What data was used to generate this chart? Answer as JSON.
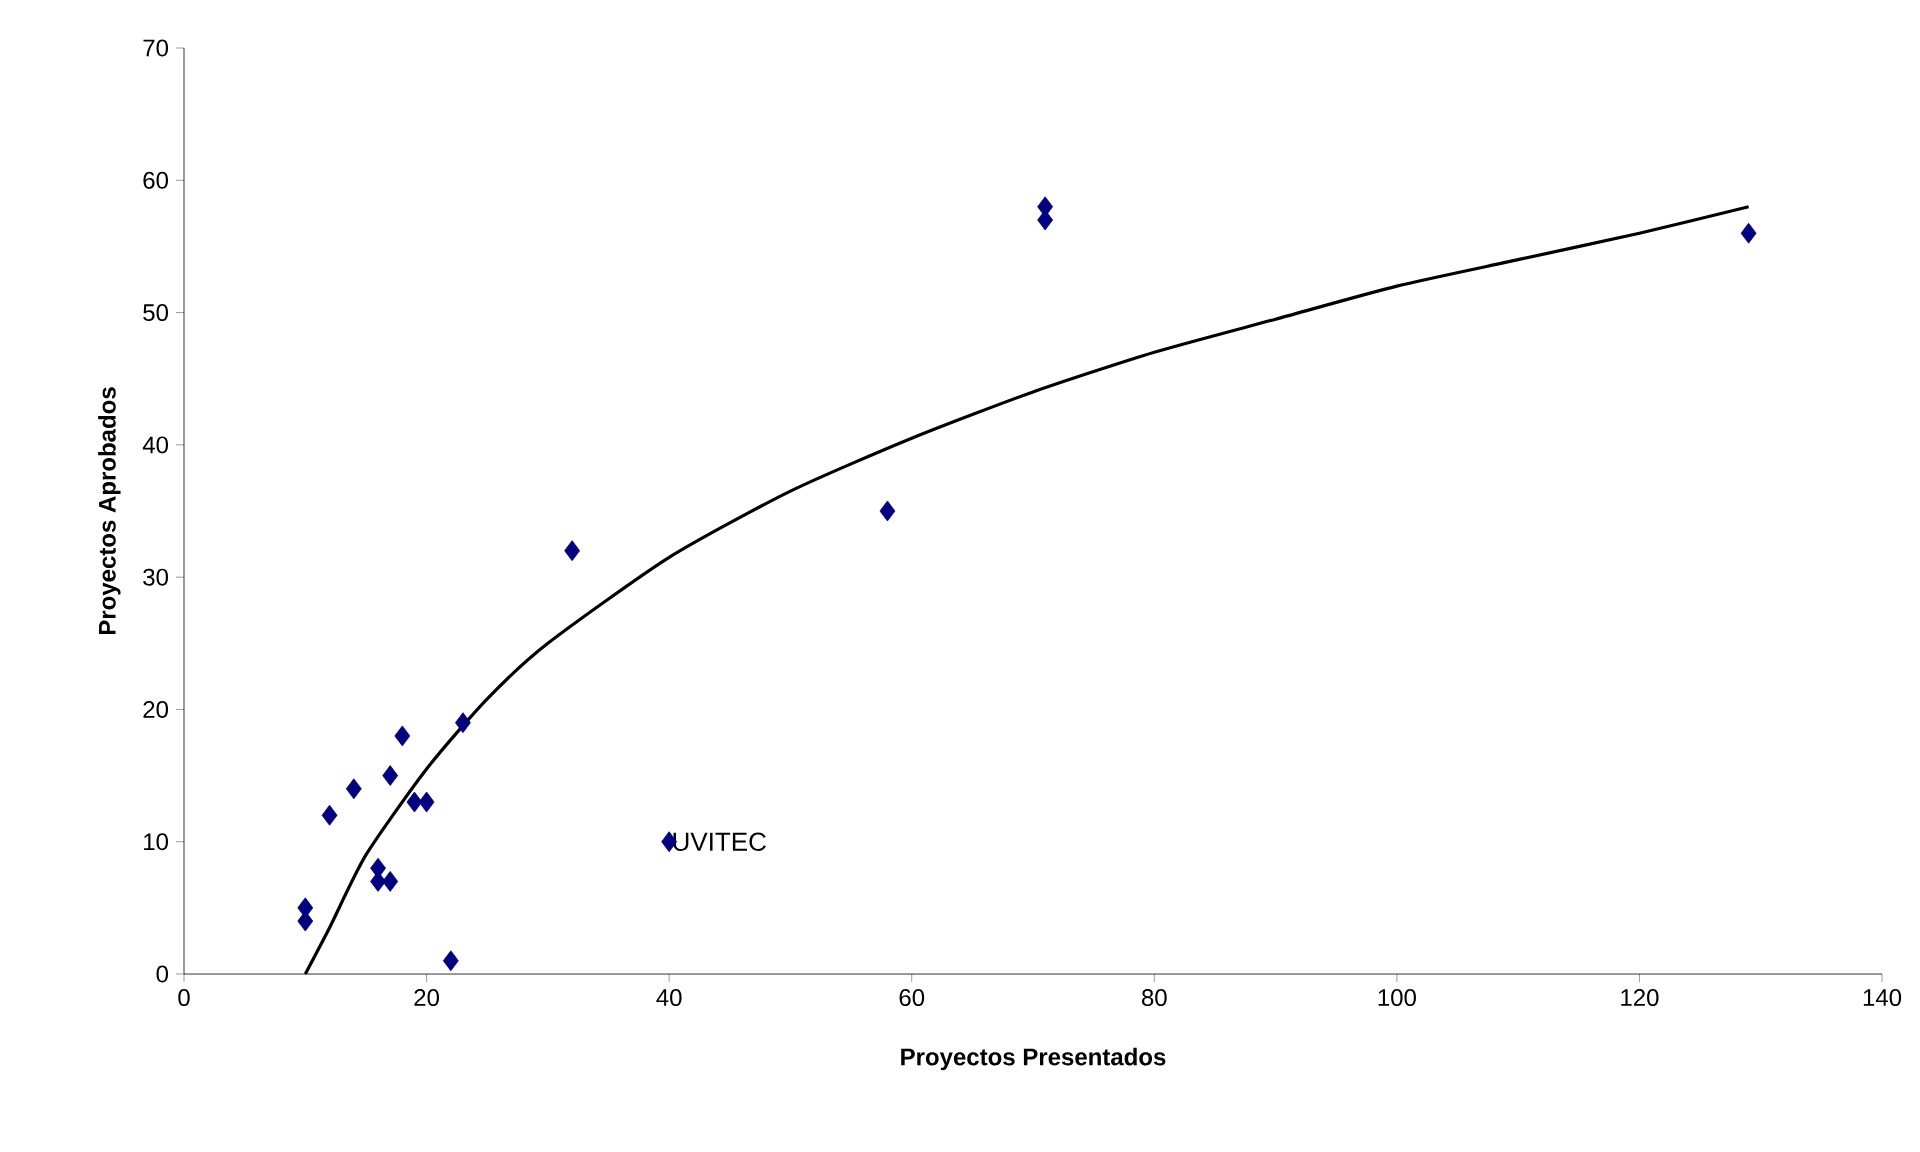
{
  "chart_data": {
    "type": "scatter",
    "xlabel": "Proyectos Presentados",
    "ylabel": "Proyectos Aprobados",
    "xlim": [
      0,
      140
    ],
    "ylim": [
      0,
      70
    ],
    "xticks": [
      0,
      20,
      40,
      60,
      80,
      100,
      120,
      140
    ],
    "yticks": [
      0,
      10,
      20,
      30,
      40,
      50,
      60,
      70
    ],
    "grid": false,
    "marker": "diamond",
    "series": [
      {
        "color": "#000080",
        "x": [
          10,
          10,
          12,
          14,
          16,
          16,
          17,
          17,
          18,
          19,
          20,
          22,
          23,
          32,
          40,
          58,
          71,
          71,
          129
        ],
        "values": [
          5,
          4,
          12,
          14,
          8,
          7,
          7,
          15,
          18,
          13,
          13,
          1,
          19,
          32,
          10,
          35,
          58,
          57,
          56
        ]
      },
      {
        "type": "line",
        "color": "#000000",
        "marker": "none",
        "x": [
          10,
          12,
          15,
          20,
          25,
          30,
          40,
          50,
          60,
          70,
          80,
          90,
          100,
          110,
          120,
          129
        ],
        "values": [
          0,
          3.5,
          9,
          15.5,
          20.8,
          25,
          31.5,
          36.5,
          40.5,
          44,
          47,
          49.5,
          52,
          54,
          56,
          58
        ]
      }
    ],
    "annotations": [
      {
        "text": "UVITEC",
        "x": 40,
        "y": 10
      }
    ]
  }
}
